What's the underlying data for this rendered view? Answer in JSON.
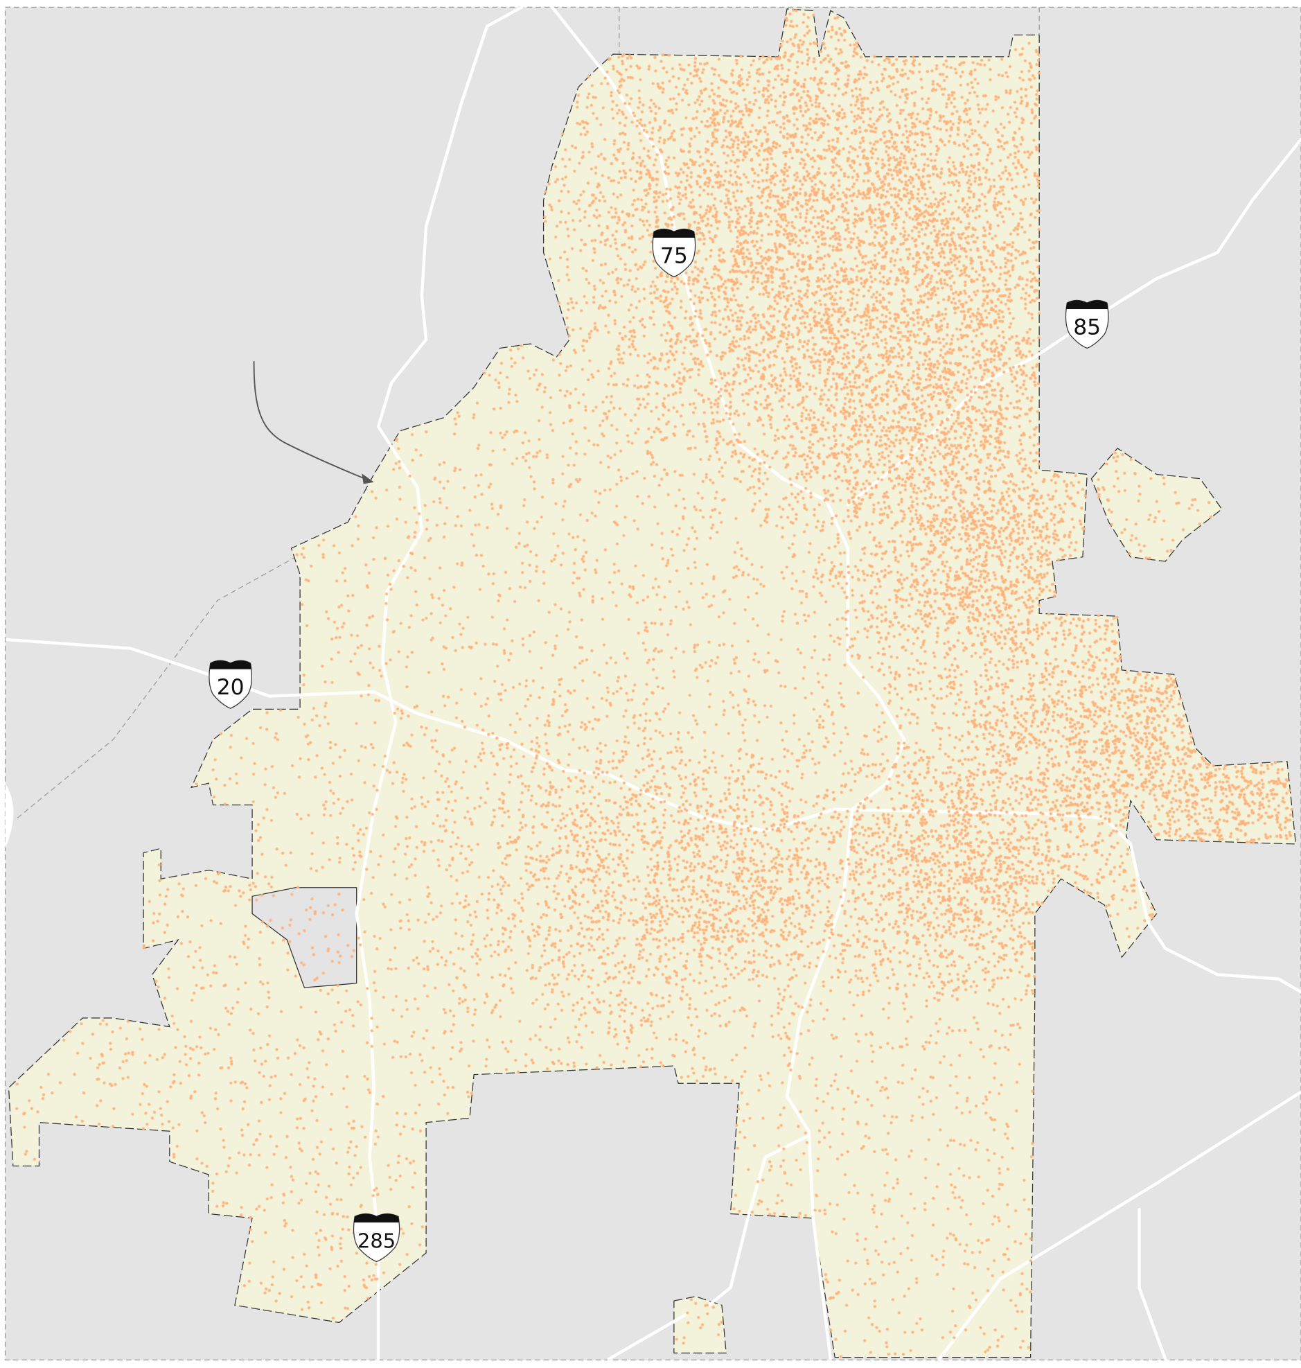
{
  "map": {
    "colors": {
      "background": "#ffffff",
      "outside_area": "#e4e4e4",
      "city_area": "#f3f3dc",
      "dots": "#ffb27a",
      "roads": "#ffffff",
      "city_border": "#333333",
      "frame_border": "#9a9a9a",
      "callout_arrow": "#555555"
    },
    "layers": [
      "outside-area",
      "city-boundary",
      "highways",
      "address-dots",
      "interstate-shields",
      "callout-arrow"
    ],
    "shields": [
      {
        "route": "75",
        "icon": "interstate-shield-icon"
      },
      {
        "route": "85",
        "icon": "interstate-shield-icon"
      },
      {
        "route": "20",
        "icon": "interstate-shield-icon"
      },
      {
        "route": "285",
        "icon": "interstate-shield-icon"
      }
    ]
  }
}
